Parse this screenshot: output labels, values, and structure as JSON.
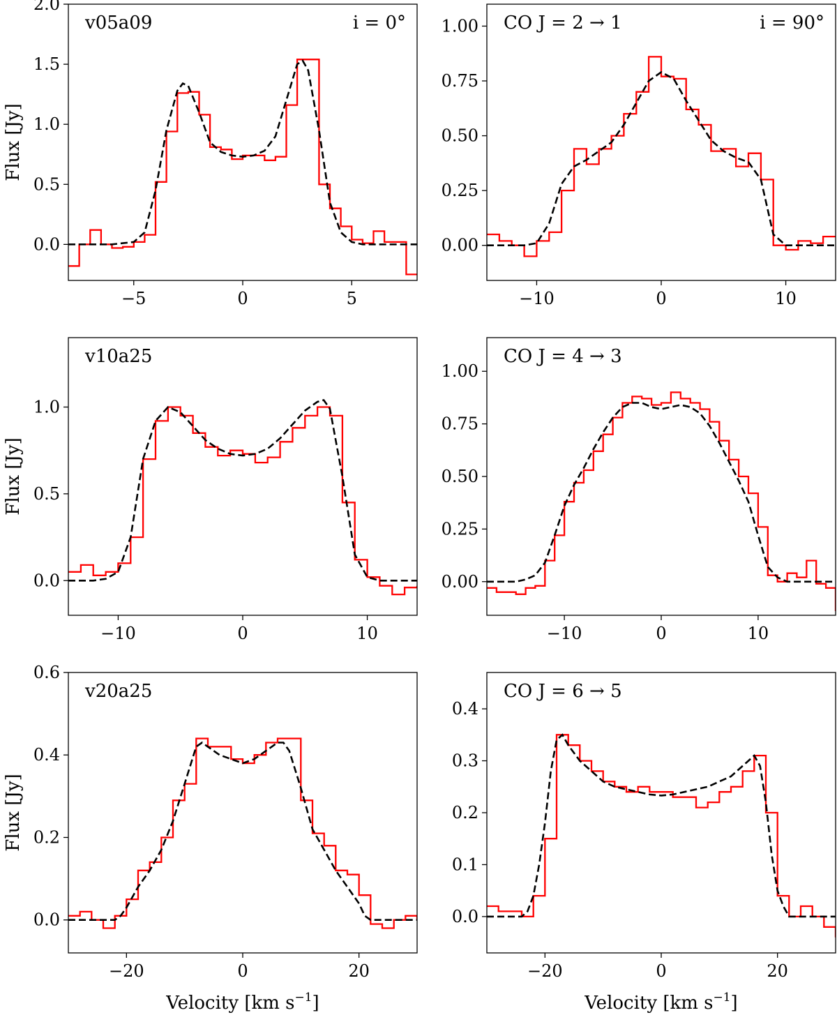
{
  "chart_data": [
    {
      "type": "line",
      "model": "v05a09",
      "label_left": "v05a09",
      "label_right": "i = 0°",
      "xlabel": "",
      "ylabel": "Flux [Jy]",
      "xlim": [
        -8,
        8
      ],
      "ylim": [
        -0.3,
        2.0
      ],
      "xticks": [
        -5,
        0,
        5
      ],
      "xtick_labels": [
        "−5",
        "0",
        "5"
      ],
      "yticks": [
        0.0,
        0.5,
        1.0,
        1.5,
        2.0
      ],
      "ytick_labels": [
        "0.0",
        "0.5",
        "1.0",
        "1.5",
        "2.0"
      ],
      "series": [
        {
          "name": "data",
          "style": "step",
          "color": "#ff0000",
          "x": [
            -8.0,
            -7.5,
            -7.0,
            -6.5,
            -6.0,
            -5.5,
            -5.0,
            -4.5,
            -4.0,
            -3.5,
            -3.0,
            -2.5,
            -2.0,
            -1.5,
            -1.0,
            -0.5,
            0.0,
            0.5,
            1.0,
            1.5,
            2.0,
            2.5,
            3.0,
            3.5,
            4.0,
            4.5,
            5.0,
            5.5,
            6.0,
            6.5,
            7.0,
            7.5,
            8.0
          ],
          "y": [
            -0.18,
            0.0,
            0.12,
            0.0,
            -0.03,
            -0.02,
            0.02,
            0.08,
            0.52,
            0.94,
            1.26,
            1.27,
            1.08,
            0.81,
            0.79,
            0.71,
            0.74,
            0.74,
            0.7,
            0.73,
            1.16,
            1.54,
            1.54,
            0.5,
            0.3,
            0.15,
            0.04,
            0.01,
            0.11,
            0.02,
            0.02,
            -0.25,
            -0.25
          ]
        },
        {
          "name": "fit",
          "style": "dashed",
          "color": "#000000",
          "x": [
            -8.0,
            -7.5,
            -7.0,
            -6.5,
            -6.0,
            -5.5,
            -5.0,
            -4.5,
            -4.0,
            -3.5,
            -3.0,
            -2.75,
            -2.5,
            -2.0,
            -1.5,
            -1.0,
            -0.5,
            0.0,
            0.5,
            1.0,
            1.5,
            2.0,
            2.5,
            2.75,
            3.0,
            3.5,
            4.0,
            4.5,
            5.0,
            5.5,
            6.0,
            7.0,
            8.0
          ],
          "y": [
            0.0,
            0.0,
            0.0,
            0.0,
            0.0,
            0.01,
            0.02,
            0.1,
            0.45,
            0.95,
            1.28,
            1.34,
            1.32,
            1.1,
            0.85,
            0.77,
            0.74,
            0.73,
            0.74,
            0.78,
            0.9,
            1.2,
            1.5,
            1.53,
            1.45,
            0.95,
            0.35,
            0.1,
            0.02,
            0.0,
            0.0,
            0.0,
            0.0
          ]
        }
      ]
    },
    {
      "type": "line",
      "model": "CO J=2→1",
      "label_left": "CO J = 2 → 1",
      "label_right": "i = 90°",
      "xlabel": "",
      "ylabel": "",
      "xlim": [
        -14,
        14
      ],
      "ylim": [
        -0.16,
        1.1
      ],
      "xticks": [
        -10,
        0,
        10
      ],
      "xtick_labels": [
        "−10",
        "0",
        "10"
      ],
      "yticks": [
        0.0,
        0.25,
        0.5,
        0.75,
        1.0
      ],
      "ytick_labels": [
        "0.00",
        "0.25",
        "0.50",
        "0.75",
        "1.00"
      ],
      "series": [
        {
          "name": "data",
          "style": "step",
          "color": "#ff0000",
          "x": [
            -14,
            -13,
            -12,
            -11,
            -10,
            -9,
            -8,
            -7,
            -6,
            -5,
            -4,
            -3,
            -2,
            -1,
            0,
            1,
            2,
            3,
            4,
            5,
            6,
            7,
            8,
            9,
            10,
            11,
            12,
            13,
            14
          ],
          "y": [
            0.05,
            0.02,
            0.0,
            -0.05,
            0.02,
            0.06,
            0.25,
            0.44,
            0.37,
            0.44,
            0.5,
            0.6,
            0.7,
            0.86,
            0.77,
            0.76,
            0.62,
            0.55,
            0.43,
            0.44,
            0.36,
            0.42,
            0.3,
            0.0,
            -0.02,
            0.02,
            0.01,
            0.04,
            0.04
          ]
        },
        {
          "name": "fit",
          "style": "dashed",
          "color": "#000000",
          "x": [
            -14,
            -12,
            -11,
            -10,
            -9,
            -8,
            -7,
            -6,
            -5,
            -4,
            -3,
            -2,
            -1,
            0,
            1,
            2,
            3,
            4,
            5,
            6,
            7,
            8,
            9,
            10,
            11,
            12,
            14
          ],
          "y": [
            0.0,
            0.0,
            0.0,
            0.01,
            0.1,
            0.28,
            0.36,
            0.39,
            0.43,
            0.47,
            0.55,
            0.65,
            0.75,
            0.79,
            0.76,
            0.66,
            0.57,
            0.48,
            0.43,
            0.4,
            0.38,
            0.3,
            0.05,
            0.0,
            0.0,
            0.0,
            0.0
          ]
        }
      ]
    },
    {
      "type": "line",
      "model": "v10a25",
      "label_left": "v10a25",
      "xlabel": "",
      "ylabel": "Flux [Jy]",
      "xlim": [
        -14,
        14
      ],
      "ylim": [
        -0.2,
        1.4
      ],
      "xticks": [
        -10,
        0,
        10
      ],
      "xtick_labels": [
        "−10",
        "0",
        "10"
      ],
      "yticks": [
        0.0,
        0.5,
        1.0
      ],
      "ytick_labels": [
        "0.0",
        "0.5",
        "1.0"
      ],
      "series": [
        {
          "name": "data",
          "style": "step",
          "color": "#ff0000",
          "x": [
            -14,
            -13,
            -12,
            -11,
            -10,
            -9,
            -8,
            -7,
            -6,
            -5,
            -4,
            -3,
            -2,
            -1,
            0,
            1,
            2,
            3,
            4,
            5,
            6,
            7,
            8,
            9,
            10,
            11,
            12,
            13,
            14
          ],
          "y": [
            0.05,
            0.09,
            0.03,
            0.05,
            0.1,
            0.25,
            0.7,
            0.92,
            1.0,
            0.95,
            0.85,
            0.77,
            0.72,
            0.75,
            0.73,
            0.68,
            0.71,
            0.8,
            0.88,
            0.95,
            1.0,
            0.95,
            0.45,
            0.12,
            0.02,
            -0.03,
            -0.08,
            -0.04,
            -0.03
          ]
        },
        {
          "name": "fit",
          "style": "dashed",
          "color": "#000000",
          "x": [
            -14,
            -12,
            -11,
            -10,
            -9,
            -8,
            -7,
            -6,
            -5,
            -4,
            -3,
            -2,
            -1,
            0,
            1,
            2,
            3,
            4,
            5,
            6,
            6.5,
            7,
            8,
            9,
            10,
            11,
            12,
            14
          ],
          "y": [
            0.0,
            0.0,
            0.01,
            0.05,
            0.25,
            0.7,
            0.92,
            1.0,
            0.97,
            0.89,
            0.81,
            0.76,
            0.73,
            0.72,
            0.73,
            0.76,
            0.82,
            0.9,
            0.98,
            1.03,
            1.04,
            0.99,
            0.6,
            0.15,
            0.02,
            0.0,
            0.0,
            0.0
          ]
        }
      ]
    },
    {
      "type": "line",
      "model": "CO J=4→3",
      "label_left": "CO J = 4 → 3",
      "xlabel": "",
      "ylabel": "",
      "xlim": [
        -18,
        18
      ],
      "ylim": [
        -0.16,
        1.16
      ],
      "xticks": [
        -10,
        0,
        10
      ],
      "xtick_labels": [
        "−10",
        "0",
        "10"
      ],
      "yticks": [
        0.0,
        0.25,
        0.5,
        0.75,
        1.0
      ],
      "ytick_labels": [
        "0.00",
        "0.25",
        "0.50",
        "0.75",
        "1.00"
      ],
      "series": [
        {
          "name": "data",
          "style": "step",
          "color": "#ff0000",
          "x": [
            -18,
            -17,
            -16,
            -15,
            -14,
            -13,
            -12,
            -11,
            -10,
            -9,
            -8,
            -7,
            -6,
            -5,
            -4,
            -3,
            -2,
            -1,
            0,
            1,
            2,
            3,
            4,
            5,
            6,
            7,
            8,
            9,
            10,
            11,
            12,
            13,
            14,
            15,
            16,
            17,
            18
          ],
          "y": [
            -0.03,
            -0.05,
            -0.05,
            -0.06,
            -0.03,
            -0.02,
            0.1,
            0.22,
            0.38,
            0.47,
            0.53,
            0.62,
            0.7,
            0.78,
            0.85,
            0.88,
            0.87,
            0.84,
            0.85,
            0.9,
            0.87,
            0.85,
            0.82,
            0.76,
            0.67,
            0.58,
            0.5,
            0.42,
            0.26,
            0.03,
            0.0,
            0.04,
            0.02,
            0.1,
            -0.01,
            -0.03,
            -0.14
          ]
        },
        {
          "name": "fit",
          "style": "dashed",
          "color": "#000000",
          "x": [
            -18,
            -16,
            -15,
            -14,
            -13,
            -12,
            -11,
            -10,
            -9,
            -8,
            -7,
            -6,
            -5,
            -4,
            -3,
            -2,
            -1,
            0,
            1,
            2,
            3,
            4,
            5,
            6,
            7,
            8,
            9,
            10,
            11,
            12,
            13,
            14,
            16,
            18
          ],
          "y": [
            0.0,
            0.0,
            0.0,
            0.01,
            0.03,
            0.09,
            0.22,
            0.36,
            0.46,
            0.54,
            0.63,
            0.71,
            0.78,
            0.83,
            0.85,
            0.85,
            0.83,
            0.82,
            0.83,
            0.84,
            0.83,
            0.8,
            0.74,
            0.66,
            0.57,
            0.48,
            0.38,
            0.22,
            0.07,
            0.02,
            0.0,
            0.0,
            0.0,
            0.0
          ]
        }
      ]
    },
    {
      "type": "line",
      "model": "v20a25",
      "label_left": "v20a25",
      "xlabel": "Velocity [km s−1]",
      "ylabel": "Flux [Jy]",
      "xlim": [
        -30,
        30
      ],
      "ylim": [
        -0.08,
        0.6
      ],
      "xticks": [
        -20,
        0,
        20
      ],
      "xtick_labels": [
        "−20",
        "0",
        "20"
      ],
      "yticks": [
        0.0,
        0.2,
        0.4,
        0.6
      ],
      "ytick_labels": [
        "0.0",
        "0.2",
        "0.4",
        "0.6"
      ],
      "series": [
        {
          "name": "data",
          "style": "step",
          "color": "#ff0000",
          "x": [
            -30,
            -28,
            -26,
            -24,
            -22,
            -20,
            -18,
            -16,
            -14,
            -12,
            -10,
            -8,
            -6,
            -4,
            -2,
            0,
            2,
            4,
            6,
            8,
            10,
            12,
            14,
            16,
            18,
            20,
            22,
            24,
            26,
            28,
            30
          ],
          "y": [
            0.01,
            0.02,
            0.0,
            -0.02,
            0.01,
            0.05,
            0.12,
            0.14,
            0.2,
            0.29,
            0.33,
            0.44,
            0.42,
            0.42,
            0.39,
            0.38,
            0.4,
            0.43,
            0.44,
            0.44,
            0.29,
            0.21,
            0.18,
            0.12,
            0.11,
            0.06,
            -0.01,
            -0.02,
            0.0,
            0.01,
            0.0
          ]
        },
        {
          "name": "fit",
          "style": "dashed",
          "color": "#000000",
          "x": [
            -30,
            -24,
            -22,
            -21,
            -20,
            -18,
            -16,
            -14,
            -12,
            -10,
            -8,
            -7,
            -6,
            -4,
            -2,
            0,
            2,
            4,
            6,
            7,
            8,
            10,
            12,
            14,
            16,
            18,
            20,
            21,
            22,
            24,
            30
          ],
          "y": [
            0.0,
            0.0,
            0.0,
            0.01,
            0.03,
            0.08,
            0.12,
            0.17,
            0.24,
            0.33,
            0.42,
            0.43,
            0.42,
            0.4,
            0.39,
            0.38,
            0.39,
            0.41,
            0.43,
            0.43,
            0.41,
            0.32,
            0.22,
            0.17,
            0.12,
            0.08,
            0.04,
            0.01,
            0.0,
            0.0,
            0.0
          ]
        }
      ]
    },
    {
      "type": "line",
      "model": "CO J=6→5",
      "label_left": "CO J = 6 → 5",
      "xlabel": "Velocity [km s−1]",
      "ylabel": "",
      "xlim": [
        -30,
        30
      ],
      "ylim": [
        -0.07,
        0.47
      ],
      "xticks": [
        -20,
        0,
        20
      ],
      "xtick_labels": [
        "−20",
        "0",
        "20"
      ],
      "yticks": [
        0.0,
        0.1,
        0.2,
        0.3,
        0.4
      ],
      "ytick_labels": [
        "0.0",
        "0.1",
        "0.2",
        "0.3",
        "0.4"
      ],
      "series": [
        {
          "name": "data",
          "style": "step",
          "color": "#ff0000",
          "x": [
            -30,
            -28,
            -26,
            -24,
            -22,
            -20,
            -18,
            -16,
            -14,
            -12,
            -10,
            -8,
            -6,
            -4,
            -2,
            0,
            2,
            4,
            6,
            8,
            10,
            12,
            14,
            16,
            18,
            20,
            22,
            24,
            26,
            28,
            30
          ],
          "y": [
            0.02,
            0.01,
            0.01,
            0.0,
            0.04,
            0.15,
            0.35,
            0.33,
            0.3,
            0.28,
            0.26,
            0.25,
            0.24,
            0.25,
            0.24,
            0.24,
            0.23,
            0.23,
            0.21,
            0.22,
            0.24,
            0.25,
            0.28,
            0.31,
            0.2,
            0.04,
            0.0,
            0.02,
            0.0,
            -0.02,
            -0.04
          ]
        },
        {
          "name": "fit",
          "style": "dashed",
          "color": "#000000",
          "x": [
            -30,
            -26,
            -24,
            -23,
            -22,
            -21,
            -20,
            -19,
            -18,
            -17,
            -16,
            -14,
            -12,
            -10,
            -8,
            -6,
            -4,
            -2,
            0,
            2,
            4,
            6,
            8,
            10,
            12,
            14,
            15,
            16,
            17,
            18,
            19,
            20,
            21,
            22,
            24,
            30
          ],
          "y": [
            0.0,
            0.0,
            0.0,
            0.01,
            0.04,
            0.1,
            0.18,
            0.28,
            0.34,
            0.35,
            0.33,
            0.3,
            0.28,
            0.26,
            0.25,
            0.245,
            0.24,
            0.235,
            0.233,
            0.235,
            0.24,
            0.245,
            0.25,
            0.26,
            0.27,
            0.29,
            0.3,
            0.31,
            0.29,
            0.22,
            0.12,
            0.05,
            0.02,
            0.0,
            0.0,
            0.0
          ]
        }
      ]
    }
  ],
  "figure": {
    "ylabel_text": "Flux [Jy]",
    "xlabel_text": "Velocity [km s",
    "xlabel_exp": "−1",
    "xlabel_close": "]"
  }
}
